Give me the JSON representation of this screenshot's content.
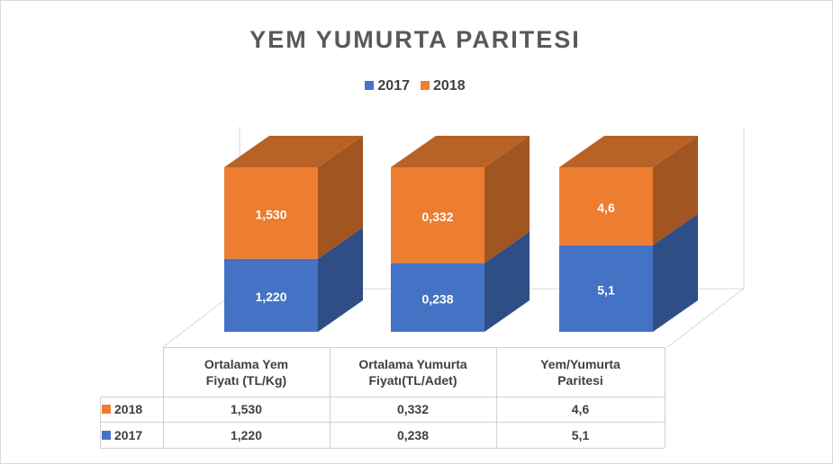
{
  "chart_data": {
    "type": "bar",
    "stacked": "percent",
    "title": "YEM YUMURTA  PARITESI",
    "categories": [
      "Ortalama Yem Fiyatı (TL/Kg)",
      "Ortalama Yumurta Fiyatı(TL/Adet)",
      "Yem/Yumurta Paritesi"
    ],
    "series": [
      {
        "name": "2017",
        "color": "#4472c4",
        "values": [
          1.22,
          0.238,
          5.1
        ],
        "value_labels": [
          "1,220",
          "0,238",
          "5,1"
        ]
      },
      {
        "name": "2018",
        "color": "#ed7d31",
        "values": [
          1.53,
          0.332,
          4.6
        ],
        "value_labels": [
          "1,530",
          "0,332",
          "4,6"
        ]
      }
    ],
    "legend": "top",
    "data_table": true
  }
}
